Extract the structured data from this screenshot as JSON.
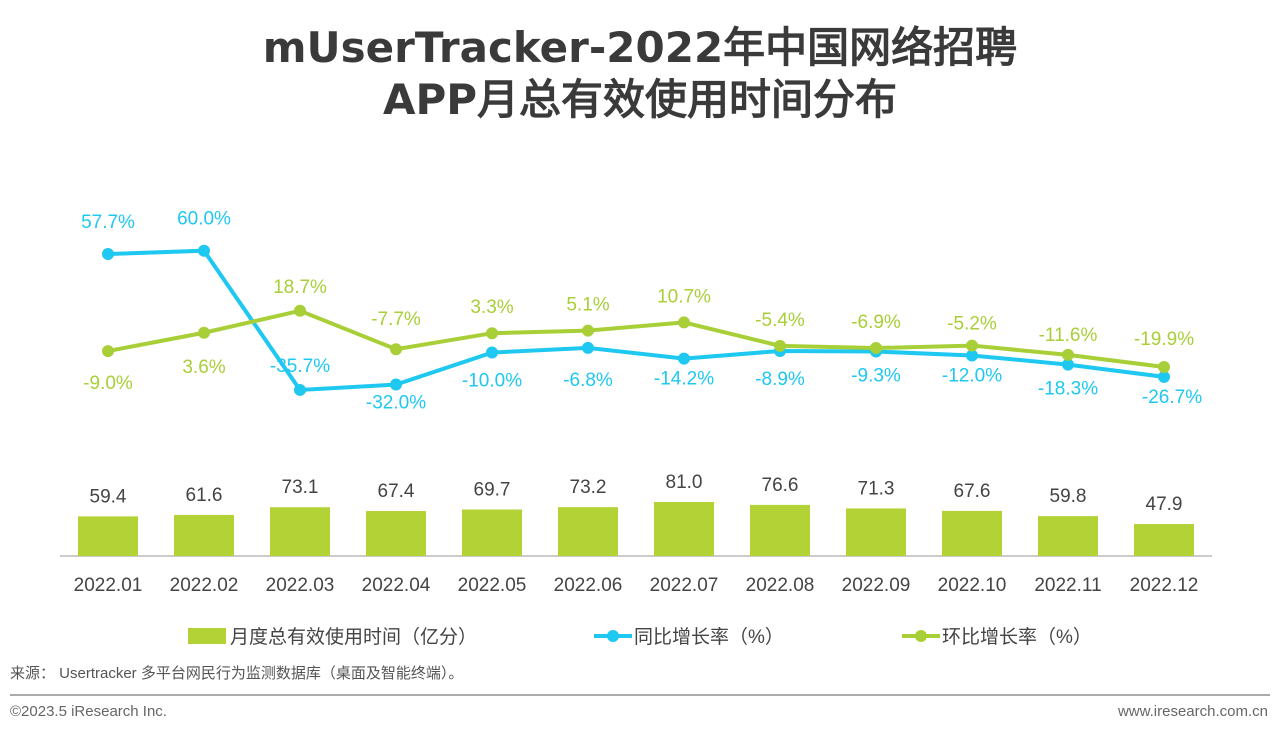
{
  "chart_data": {
    "type": "bar+line",
    "title": "mUserTracker-2022年中国网络招聘APP月总有效使用时间分布",
    "title_lines": [
      "mUserTracker-2022年中国网络招聘",
      "APP月总有效使用时间分布"
    ],
    "categories": [
      "2022.01",
      "2022.02",
      "2022.03",
      "2022.04",
      "2022.05",
      "2022.06",
      "2022.07",
      "2022.08",
      "2022.09",
      "2022.10",
      "2022.11",
      "2022.12"
    ],
    "series": [
      {
        "name": "月度总有效使用时间（亿分）",
        "type": "bar",
        "color": "#b2d235",
        "values": [
          59.4,
          61.6,
          73.1,
          67.4,
          69.7,
          73.2,
          81.0,
          76.6,
          71.3,
          67.6,
          59.8,
          47.9
        ]
      },
      {
        "name": "同比增长率（%）",
        "type": "line",
        "color": "#1ec8f0",
        "values": [
          57.7,
          60.0,
          -35.7,
          -32.0,
          -10.0,
          -6.8,
          -14.2,
          -8.9,
          -9.3,
          -12.0,
          -18.3,
          -26.7
        ]
      },
      {
        "name": "环比增长率（%）",
        "type": "line",
        "color": "#a8cf38",
        "values": [
          -9.0,
          3.6,
          18.7,
          -7.7,
          3.3,
          5.1,
          10.7,
          -5.4,
          -6.9,
          -5.2,
          -11.6,
          -19.9
        ]
      }
    ],
    "legend_position": "bottom",
    "grid": false
  },
  "source": "来源： Usertracker 多平台网民行为监测数据库（桌面及智能终端）。",
  "footer": {
    "copyright": "©2023.5 iResearch Inc.",
    "website": "www.iresearch.com.cn"
  }
}
